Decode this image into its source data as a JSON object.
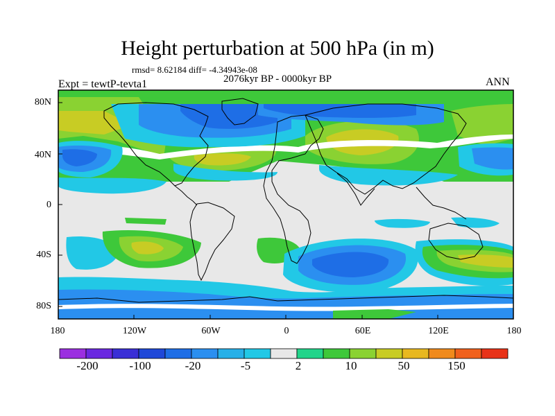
{
  "title": "Height perturbation at 500 hPa (in m)",
  "stats": "rmsd= 8.62184 diff= -4.34943e-08",
  "period": "2076kyr BP - 0000kyr BP",
  "experiment": "Expt = tewtP-tevta1",
  "season": "ANN",
  "lat_labels": [
    "80N",
    "40N",
    "0",
    "40S",
    "80S"
  ],
  "lon_labels": [
    "180",
    "120W",
    "60W",
    "0",
    "60E",
    "120E",
    "180"
  ],
  "colorbar": {
    "labels": [
      "-200",
      "-100",
      "-20",
      "-5",
      "2",
      "10",
      "50",
      "150"
    ],
    "colors": [
      "#9b2fe0",
      "#6a28e0",
      "#3a2fd6",
      "#1f48d8",
      "#1e6ee6",
      "#2b8ff0",
      "#27b0e8",
      "#22c8e6",
      "#e8e8e8",
      "#22d48a",
      "#3ec83a",
      "#8ad232",
      "#c8cc24",
      "#e8b820",
      "#f08a1c",
      "#f0601c",
      "#e83218"
    ]
  },
  "colors": {
    "land_outline": "#000000",
    "neutral": "#e8e8e8",
    "frame": "#000000"
  }
}
